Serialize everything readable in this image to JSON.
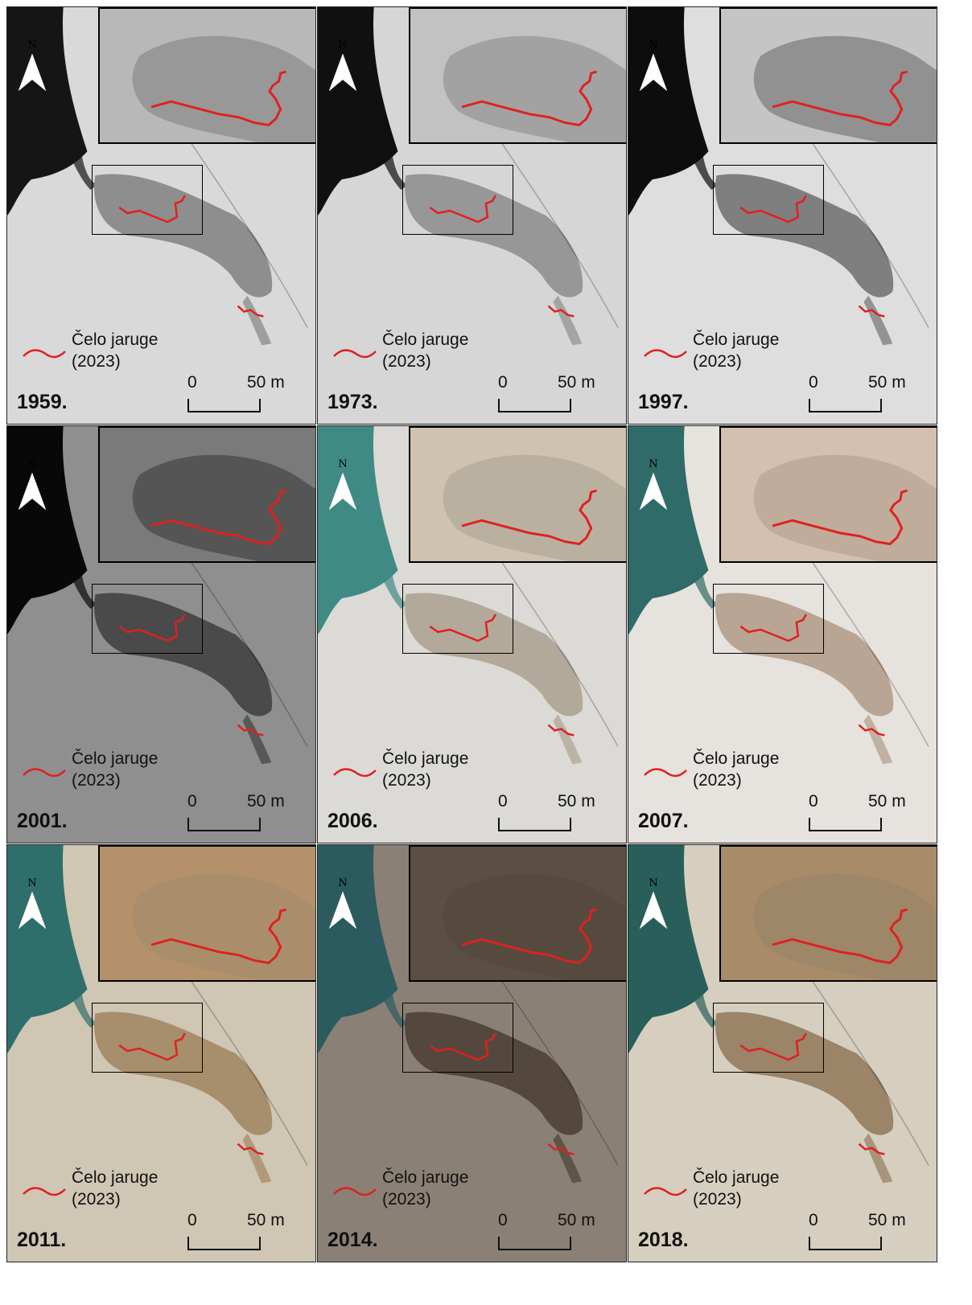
{
  "north_label": "N",
  "legend": {
    "label_line1": "Čelo jaruge",
    "label_line2": "(2023)",
    "line_color": "#e02020"
  },
  "scale_bar": {
    "label_start": "0",
    "label_end": "50 m"
  },
  "panels": [
    {
      "year": "1959.",
      "imagery": "grayscale",
      "colors": {
        "base": "#d9d9d9",
        "water": "#151515",
        "gully": "#8e8e8e",
        "inset": "#b8b8b8"
      }
    },
    {
      "year": "1973.",
      "imagery": "grayscale",
      "colors": {
        "base": "#d6d6d6",
        "water": "#101010",
        "gully": "#979797",
        "inset": "#c2c2c2"
      }
    },
    {
      "year": "1997.",
      "imagery": "grayscale",
      "colors": {
        "base": "#dedede",
        "water": "#0d0d0d",
        "gully": "#7f7f7f",
        "inset": "#c5c5c5"
      }
    },
    {
      "year": "2001.",
      "imagery": "grayscale",
      "colors": {
        "base": "#8f8f8f",
        "water": "#080808",
        "gully": "#4a4a4a",
        "inset": "#7a7a7a"
      }
    },
    {
      "year": "2006.",
      "imagery": "color",
      "colors": {
        "base": "#dcdad6",
        "water": "#3f8a85",
        "gully": "#b3a99a",
        "inset": "#cfc3b0"
      }
    },
    {
      "year": "2007.",
      "imagery": "color",
      "colors": {
        "base": "#e6e2de",
        "water": "#2f6b68",
        "gully": "#b8a593",
        "inset": "#d3c0ae"
      }
    },
    {
      "year": "2011.",
      "imagery": "color",
      "colors": {
        "base": "#cfc6b4",
        "water": "#2f6f6b",
        "gully": "#a78e6c",
        "inset": "#b4916a"
      }
    },
    {
      "year": "2014.",
      "imagery": "color",
      "colors": {
        "base": "#8a8076",
        "water": "#2b5b5e",
        "gully": "#54483e",
        "inset": "#5b4f45"
      }
    },
    {
      "year": "2018.",
      "imagery": "color",
      "colors": {
        "base": "#d6cfc0",
        "water": "#285f5b",
        "gully": "#9b8468",
        "inset": "#a88b69"
      }
    }
  ]
}
